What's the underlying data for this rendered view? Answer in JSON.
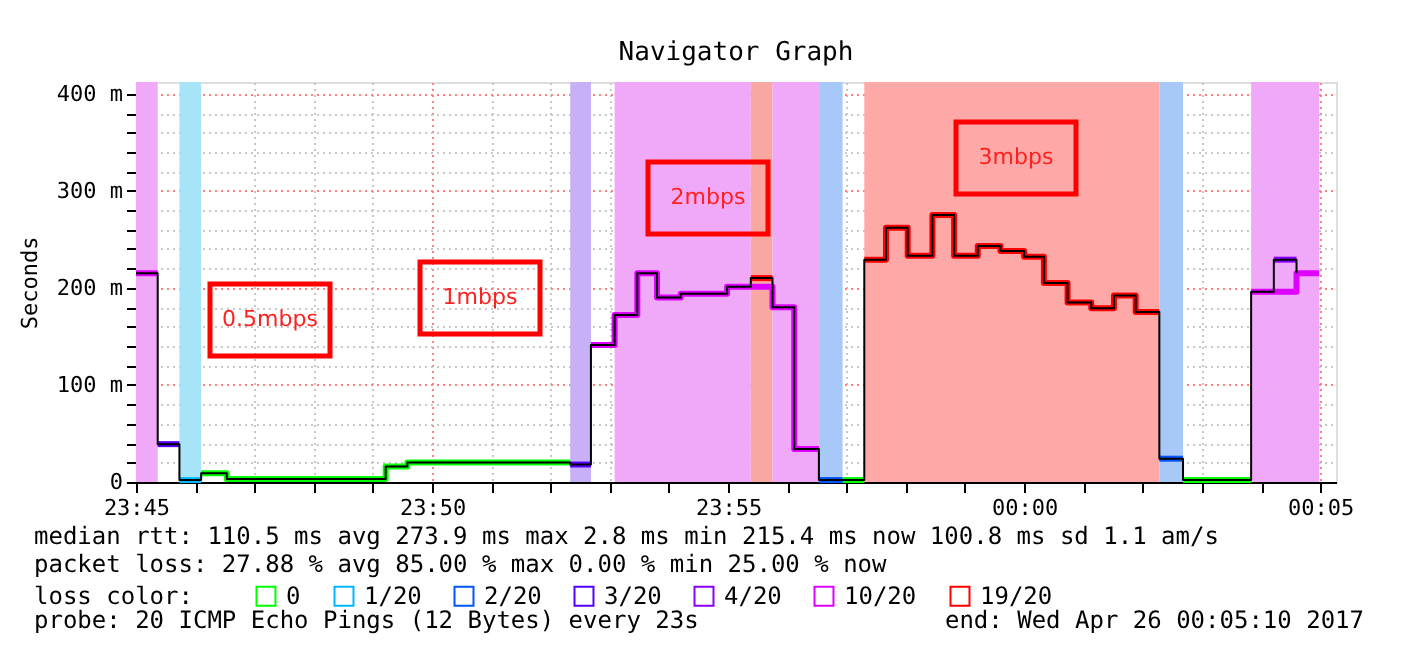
{
  "chart_data": {
    "type": "step",
    "title": "Navigator Graph",
    "ylabel": "Seconds",
    "x": [
      "2017-04-25T23:45:00",
      "2017-04-25T23:45:22",
      "2017-04-25T23:45:44",
      "2017-04-25T23:46:06",
      "2017-04-25T23:46:32",
      "2017-04-25T23:49:13",
      "2017-04-25T23:49:35",
      "2017-04-25T23:52:20",
      "2017-04-25T23:52:41",
      "2017-04-25T23:53:05",
      "2017-04-25T23:53:28",
      "2017-04-25T23:53:48",
      "2017-04-25T23:54:12",
      "2017-04-25T23:54:59",
      "2017-04-25T23:55:23",
      "2017-04-25T23:55:45",
      "2017-04-25T23:56:07",
      "2017-04-25T23:56:32",
      "2017-04-25T23:56:56",
      "2017-04-25T23:57:18",
      "2017-04-25T23:57:40",
      "2017-04-25T23:58:02",
      "2017-04-25T23:58:27",
      "2017-04-25T23:58:49",
      "2017-04-25T23:59:13",
      "2017-04-25T23:59:36",
      "2017-04-26T00:00:00",
      "2017-04-26T00:00:20",
      "2017-04-26T00:00:44",
      "2017-04-26T00:01:08",
      "2017-04-26T00:01:31",
      "2017-04-26T00:01:53",
      "2017-04-26T00:02:17",
      "2017-04-26T00:02:41",
      "2017-04-26T00:03:50",
      "2017-04-26T00:04:13",
      "2017-04-26T00:04:36",
      "2017-04-26T00:04:59"
    ],
    "series": [
      {
        "color": "#000000",
        "values": [
          215,
          39,
          2,
          9,
          3,
          16,
          20,
          18,
          141,
          172,
          215,
          190,
          194,
          201,
          210,
          180,
          34,
          2,
          2,
          229,
          262,
          233,
          275,
          233,
          243,
          238,
          232,
          205,
          185,
          179,
          192,
          175,
          24,
          2,
          196,
          229,
          215,
          null
        ]
      },
      {
        "name": "0",
        "color": "#00ff00",
        "values": [
          null,
          null,
          null,
          9,
          3,
          16,
          20,
          20,
          null,
          null,
          null,
          null,
          null,
          null,
          null,
          null,
          null,
          null,
          2,
          2,
          null,
          null,
          null,
          null,
          null,
          null,
          null,
          null,
          null,
          null,
          null,
          null,
          null,
          2,
          2,
          null,
          null,
          null
        ]
      },
      {
        "name": "1/20",
        "color": "#00b8ff",
        "values": [
          null,
          null,
          2,
          2,
          null,
          null,
          null,
          null,
          null,
          null,
          null,
          null,
          null,
          null,
          null,
          null,
          null,
          null,
          null,
          null,
          null,
          null,
          null,
          null,
          null,
          null,
          null,
          null,
          null,
          null,
          null,
          null,
          null,
          null,
          null,
          null,
          null,
          null
        ]
      },
      {
        "name": "2/20",
        "color": "#0055ff",
        "values": [
          null,
          null,
          null,
          null,
          null,
          null,
          null,
          null,
          null,
          null,
          null,
          null,
          null,
          null,
          null,
          null,
          null,
          2,
          2,
          null,
          null,
          null,
          null,
          null,
          null,
          null,
          null,
          null,
          null,
          null,
          null,
          null,
          24,
          24,
          null,
          null,
          null,
          null
        ]
      },
      {
        "name": "3/20",
        "color": "#5500ff",
        "values": [
          null,
          39,
          39,
          null,
          null,
          null,
          null,
          18,
          18,
          null,
          null,
          null,
          null,
          null,
          null,
          null,
          null,
          null,
          null,
          null,
          null,
          null,
          null,
          null,
          null,
          null,
          null,
          null,
          null,
          null,
          null,
          null,
          null,
          null,
          null,
          null,
          null,
          null
        ]
      },
      {
        "name": "4/20",
        "color": "#8800ff",
        "values": [
          null,
          null,
          null,
          null,
          null,
          null,
          null,
          null,
          null,
          null,
          null,
          null,
          null,
          null,
          null,
          null,
          null,
          null,
          null,
          null,
          null,
          null,
          null,
          null,
          null,
          null,
          null,
          null,
          null,
          null,
          null,
          null,
          null,
          null,
          null,
          229,
          229,
          null
        ]
      },
      {
        "name": "10/20",
        "color": "#dd00ff",
        "values": [
          215,
          215,
          null,
          null,
          null,
          null,
          null,
          null,
          141,
          172,
          215,
          190,
          194,
          201,
          201,
          180,
          34,
          34,
          null,
          null,
          null,
          null,
          null,
          null,
          null,
          null,
          null,
          null,
          null,
          null,
          null,
          null,
          null,
          null,
          196,
          196,
          215,
          215
        ]
      },
      {
        "name": "19/20",
        "color": "#ff0000",
        "values": [
          null,
          null,
          null,
          null,
          null,
          null,
          null,
          null,
          null,
          null,
          null,
          null,
          null,
          null,
          210,
          210,
          null,
          null,
          null,
          229,
          262,
          233,
          275,
          233,
          243,
          238,
          232,
          205,
          185,
          179,
          192,
          175,
          175,
          null,
          null,
          null,
          null,
          null
        ]
      }
    ],
    "bands": [
      {
        "axis": "x",
        "from": "2017-04-25T23:45:00",
        "to": "2017-04-25T23:45:22",
        "color": "#f0a8f8"
      },
      {
        "axis": "x",
        "from": "2017-04-25T23:45:44",
        "to": "2017-04-25T23:46:06",
        "color": "#a8e4f8"
      },
      {
        "axis": "x",
        "from": "2017-04-25T23:52:20",
        "to": "2017-04-25T23:52:41",
        "color": "#c8b0f8"
      },
      {
        "axis": "x",
        "from": "2017-04-25T23:53:05",
        "to": "2017-04-25T23:55:23",
        "color": "#f0a8f8"
      },
      {
        "axis": "x",
        "from": "2017-04-25T23:55:23",
        "to": "2017-04-25T23:55:45",
        "color": "#f8a8a0"
      },
      {
        "axis": "x",
        "from": "2017-04-25T23:55:45",
        "to": "2017-04-25T23:56:32",
        "color": "#f0a8f8"
      },
      {
        "axis": "x",
        "from": "2017-04-25T23:56:32",
        "to": "2017-04-25T23:56:56",
        "color": "#a8c8f8"
      },
      {
        "axis": "x",
        "from": "2017-04-25T23:57:18",
        "to": "2017-04-26T00:02:17",
        "color": "#ffa8a8"
      },
      {
        "axis": "x",
        "from": "2017-04-26T00:02:17",
        "to": "2017-04-26T00:02:41",
        "color": "#a8c8f8"
      },
      {
        "axis": "x",
        "from": "2017-04-26T00:03:50",
        "to": "2017-04-26T00:04:59",
        "color": "#f0a8f8"
      }
    ],
    "annotations": [
      "0.5mbps",
      "1mbps",
      "2mbps",
      "3mbps",
      "median rtt:  110.5 ms avg  273.9 ms max  2.8 ms min  215.4 ms now  100.8 ms sd  1.1   am/s",
      "packet loss: 27.88 % avg  85.00 % max  0.00 % min  25.00 % now",
      "probe:       20 ICMP Echo Pings (12 Bytes) every 23s",
      "end: Wed Apr 26 00:05:10 2017"
    ],
    "xlim": [
      "2017-04-25T23:45:00",
      "2017-04-26T00:05:16"
    ],
    "ylim": [
      0,
      412
    ],
    "xticks": [
      {
        "value": "2017-04-25T23:45",
        "label": "23:45"
      },
      {
        "value": "2017-04-25T23:46",
        "label": null
      },
      {
        "value": "2017-04-25T23:47",
        "label": null
      },
      {
        "value": "2017-04-25T23:48",
        "label": null
      },
      {
        "value": "2017-04-25T23:49",
        "label": null
      },
      {
        "value": "2017-04-25T23:50",
        "label": "23:50"
      },
      {
        "value": "2017-04-25T23:51",
        "label": null
      },
      {
        "value": "2017-04-25T23:52",
        "label": null
      },
      {
        "value": "2017-04-25T23:53",
        "label": null
      },
      {
        "value": "2017-04-25T23:54",
        "label": null
      },
      {
        "value": "2017-04-25T23:55",
        "label": "23:55"
      },
      {
        "value": "2017-04-25T23:56",
        "label": null
      },
      {
        "value": "2017-04-25T23:57",
        "label": null
      },
      {
        "value": "2017-04-25T23:58",
        "label": null
      },
      {
        "value": "2017-04-25T23:59",
        "label": null
      },
      {
        "value": "2017-04-26T00:00",
        "label": "00:00"
      },
      {
        "value": "2017-04-26T00:01",
        "label": null
      },
      {
        "value": "2017-04-26T00:02",
        "label": null
      },
      {
        "value": "2017-04-26T00:03",
        "label": null
      },
      {
        "value": "2017-04-26T00:04",
        "label": null
      },
      {
        "value": "2017-04-26T00:05",
        "label": "00:05"
      }
    ],
    "yticks": [
      {
        "value": 0,
        "label": "0"
      },
      {
        "value": 20,
        "label": null
      },
      {
        "value": 40,
        "label": null
      },
      {
        "value": 60,
        "label": null
      },
      {
        "value": 80,
        "label": null
      },
      {
        "value": 100,
        "label": "100 m"
      },
      {
        "value": 120,
        "label": null
      },
      {
        "value": 140,
        "label": null
      },
      {
        "value": 160,
        "label": null
      },
      {
        "value": 180,
        "label": null
      },
      {
        "value": 200,
        "label": "200 m"
      },
      {
        "value": 220,
        "label": null
      },
      {
        "value": 240,
        "label": null
      },
      {
        "value": 260,
        "label": null
      },
      {
        "value": 280,
        "label": null
      },
      {
        "value": 300,
        "label": "300 m"
      },
      {
        "value": 320,
        "label": null
      },
      {
        "value": 340,
        "label": null
      },
      {
        "value": 360,
        "label": null
      },
      {
        "value": 380,
        "label": null
      },
      {
        "value": 400,
        "label": "400 m"
      }
    ],
    "grid": true,
    "legend": "bottom",
    "legend_title": "loss color:"
  }
}
